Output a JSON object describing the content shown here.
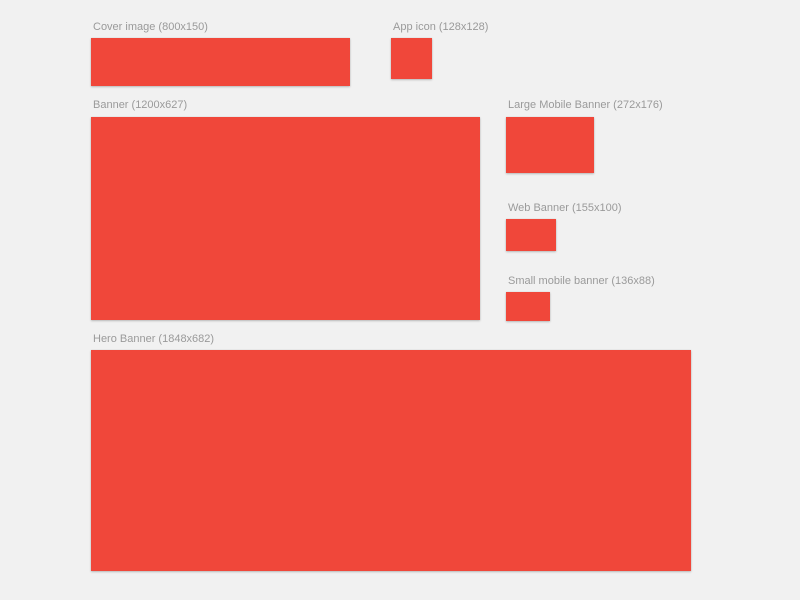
{
  "canvas": {
    "background": "#f1f1f1",
    "label_color": "#9a9a9a",
    "artboard_fill": "#f0473a"
  },
  "artboards": {
    "cover_image": {
      "label": "Cover image (800x150)",
      "fill": "#f0473a"
    },
    "app_icon": {
      "label": "App icon (128x128)",
      "fill": "#f0473a"
    },
    "banner": {
      "label": "Banner (1200x627)",
      "fill": "#f0473a"
    },
    "large_mobile_banner": {
      "label": "Large Mobile Banner (272x176)",
      "fill": "#f0473a"
    },
    "web_banner": {
      "label": "Web Banner (155x100)",
      "fill": "#f0473a"
    },
    "small_mobile_banner": {
      "label": "Small mobile banner (136x88)",
      "fill": "#f0473a"
    },
    "hero_banner": {
      "label": "Hero Banner (1848x682)",
      "fill": "#f0473a"
    }
  }
}
